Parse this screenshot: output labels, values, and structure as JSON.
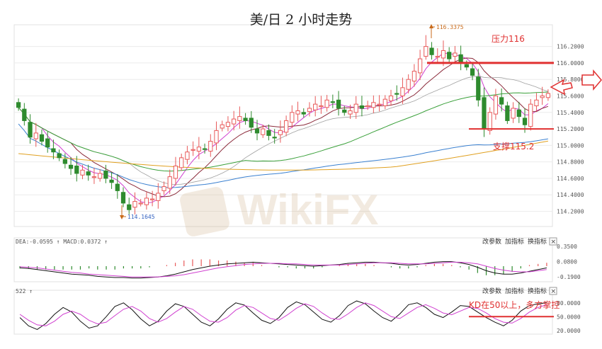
{
  "title": "美/日 2 小时走势",
  "watermark": "WikiFX",
  "annotations": {
    "peak_label": "116.3375",
    "low_label": "114.1645",
    "resistance_label": "压力116",
    "support_label": "支撑115.2",
    "kd_note": "KD在50以上，多方掌控"
  },
  "macd_panel": {
    "label": "DEA:-0.0595 ↑ MACD:0.0372 ↑",
    "buttons": [
      "改参数",
      "加指标",
      "换指标"
    ],
    "close": "✕"
  },
  "kd_panel": {
    "label": "522 ↑",
    "buttons": [
      "改参数",
      "加指标",
      "换指标"
    ],
    "close": "✕"
  },
  "colors": {
    "up": "#e85a5a",
    "down": "#2e8b2e",
    "ma_fast": "#d040d0",
    "ma_mid": "#8b2a3a",
    "ma_slow": "#a0a0a0",
    "ma_green": "#3aa03a",
    "ma_blue": "#3a80d0",
    "ma_orange": "#e0a020",
    "resistance": "#e03030",
    "support": "#e03030",
    "macd_dif": "#111111",
    "macd_dea": "#d040d0",
    "kd_k": "#111111",
    "kd_d": "#d040d0"
  },
  "chart_data": [
    {
      "type": "candlestick",
      "title": "美/日 2 小时走势",
      "y_ticks": [
        "116.2000",
        "116.0000",
        "115.8000",
        "115.6000",
        "115.4000",
        "115.2000",
        "115.0000",
        "114.8000",
        "114.6000",
        "114.4000",
        "114.2000"
      ],
      "ylim": [
        114.05,
        116.42
      ],
      "resistance": 116.0,
      "support": 115.2,
      "high_point": 116.3375,
      "low_point": 114.1645,
      "closes": [
        115.46,
        115.3,
        115.1,
        115.15,
        115.05,
        114.98,
        114.92,
        114.85,
        114.78,
        114.72,
        114.66,
        114.7,
        114.64,
        114.62,
        114.66,
        114.6,
        114.55,
        114.45,
        114.3,
        114.22,
        114.32,
        114.3,
        114.36,
        114.35,
        114.42,
        114.5,
        114.62,
        114.75,
        114.85,
        114.92,
        114.95,
        114.98,
        114.95,
        115.05,
        115.18,
        115.25,
        115.28,
        115.32,
        115.35,
        115.3,
        115.22,
        115.15,
        115.2,
        115.12,
        115.1,
        115.18,
        115.3,
        115.4,
        115.42,
        115.38,
        115.45,
        115.5,
        115.48,
        115.55,
        115.52,
        115.45,
        115.4,
        115.42,
        115.5,
        115.45,
        115.48,
        115.52,
        115.5,
        115.56,
        115.6,
        115.62,
        115.7,
        115.8,
        115.9,
        116.05,
        116.2,
        116.1,
        116.08,
        116.15,
        116.05,
        116.12,
        116.0,
        115.95,
        115.85,
        115.55,
        115.2,
        115.4,
        115.6,
        115.5,
        115.3,
        115.45,
        115.35,
        115.25,
        115.5,
        115.55,
        115.6,
        115.63
      ]
    },
    {
      "type": "macd",
      "y_ticks": [
        "0.3500",
        "0.0800",
        "-0.1900"
      ],
      "ylim": [
        -0.25,
        0.45
      ],
      "dif": [
        -0.03,
        -0.04,
        -0.06,
        -0.08,
        -0.1,
        -0.12,
        -0.14,
        -0.15,
        -0.16,
        -0.18,
        -0.19,
        -0.2,
        -0.2,
        -0.21,
        -0.21,
        -0.2,
        -0.19,
        -0.17,
        -0.14,
        -0.1,
        -0.06,
        -0.03,
        0.0,
        0.02,
        0.04,
        0.05,
        0.06,
        0.07,
        0.06,
        0.05,
        0.04,
        0.03,
        0.02,
        0.01,
        0.0,
        0.01,
        0.02,
        0.03,
        0.05,
        0.06,
        0.07,
        0.07,
        0.06,
        0.05,
        0.03,
        0.02,
        0.03,
        0.05,
        0.07,
        0.08,
        0.08,
        0.06,
        0.03,
        -0.02,
        -0.08,
        -0.12,
        -0.14,
        -0.14,
        -0.12,
        -0.09,
        -0.06,
        -0.03
      ],
      "dea": [
        -0.01,
        -0.02,
        -0.03,
        -0.05,
        -0.07,
        -0.09,
        -0.11,
        -0.12,
        -0.14,
        -0.15,
        -0.16,
        -0.17,
        -0.18,
        -0.19,
        -0.19,
        -0.19,
        -0.19,
        -0.18,
        -0.17,
        -0.15,
        -0.12,
        -0.09,
        -0.06,
        -0.03,
        -0.01,
        0.01,
        0.03,
        0.04,
        0.05,
        0.05,
        0.05,
        0.04,
        0.04,
        0.03,
        0.02,
        0.02,
        0.02,
        0.02,
        0.03,
        0.04,
        0.05,
        0.06,
        0.06,
        0.06,
        0.05,
        0.04,
        0.04,
        0.04,
        0.05,
        0.06,
        0.07,
        0.07,
        0.06,
        0.04,
        0.0,
        -0.04,
        -0.07,
        -0.09,
        -0.1,
        -0.1,
        -0.08,
        -0.06
      ]
    },
    {
      "type": "line",
      "name": "KD",
      "y_ticks": [
        "80.0000",
        "50.0000",
        "20.0000"
      ],
      "ylim": [
        15,
        95
      ],
      "k": [
        48,
        30,
        22,
        35,
        55,
        70,
        60,
        40,
        25,
        30,
        50,
        72,
        80,
        65,
        45,
        30,
        40,
        62,
        78,
        72,
        55,
        38,
        30,
        45,
        66,
        80,
        75,
        58,
        42,
        35,
        48,
        70,
        82,
        76,
        60,
        44,
        38,
        52,
        74,
        84,
        78,
        62,
        48,
        40,
        56,
        76,
        80,
        70,
        55,
        48,
        60,
        74,
        72,
        60,
        48,
        38,
        30,
        42,
        62,
        74,
        78,
        80
      ],
      "d": [
        55,
        42,
        32,
        30,
        40,
        55,
        62,
        55,
        42,
        34,
        38,
        52,
        66,
        72,
        62,
        46,
        38,
        46,
        60,
        72,
        66,
        52,
        40,
        38,
        48,
        64,
        74,
        70,
        58,
        46,
        42,
        54,
        68,
        78,
        72,
        58,
        46,
        44,
        56,
        70,
        80,
        74,
        62,
        50,
        46,
        58,
        70,
        76,
        68,
        58,
        54,
        62,
        70,
        68,
        58,
        46,
        38,
        36,
        46,
        60,
        70,
        76
      ]
    }
  ]
}
